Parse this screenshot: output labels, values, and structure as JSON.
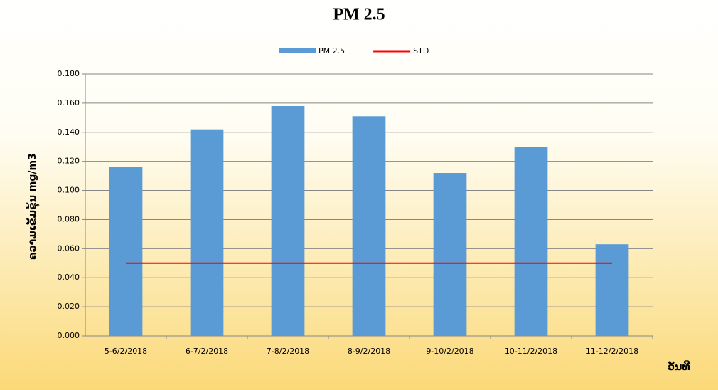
{
  "chart_data": {
    "type": "bar",
    "title": "PM 2.5",
    "x_label": "ວັນທີ",
    "y_label": "ຄວາມເຂັ້ມຂຸ້ນ mg/m3",
    "categories": [
      "5-6/2/2018",
      "6-7/2/2018",
      "7-8/2/2018",
      "8-9/2/2018",
      "9-10/2/2018",
      "10-11/2/2018",
      "11-12/2/2018"
    ],
    "series": [
      {
        "name": "PM 2.5",
        "type": "bar",
        "color": "#5b9bd5",
        "values": [
          0.116,
          0.142,
          0.158,
          0.151,
          0.112,
          0.13,
          0.063
        ]
      },
      {
        "name": "STD",
        "type": "line",
        "color": "#ff0000",
        "values": [
          0.05,
          0.05,
          0.05,
          0.05,
          0.05,
          0.05,
          0.05
        ]
      }
    ],
    "ylim": [
      0,
      0.18
    ],
    "yticks": [
      {
        "value": 0,
        "label": "0.000"
      },
      {
        "value": 0.02,
        "label": "0.020"
      },
      {
        "value": 0.04,
        "label": "0.040"
      },
      {
        "value": 0.06,
        "label": "0.060"
      },
      {
        "value": 0.08,
        "label": "0.080"
      },
      {
        "value": 0.1,
        "label": "0.100"
      },
      {
        "value": 0.12,
        "label": "0.120"
      },
      {
        "value": 0.14,
        "label": "0.140"
      },
      {
        "value": 0.16,
        "label": "0.160"
      },
      {
        "value": 0.18,
        "label": "0.180"
      }
    ],
    "grid": true,
    "legend": "top"
  }
}
